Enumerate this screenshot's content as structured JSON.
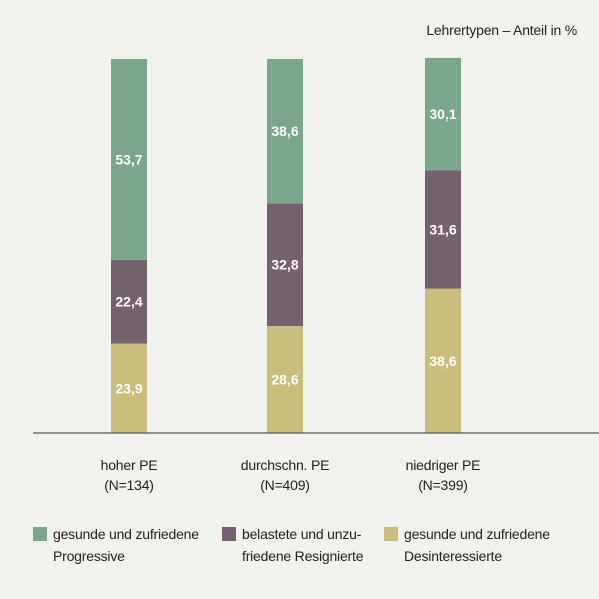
{
  "unit_label": "Lehrertypen – Anteil in %",
  "categories": [
    {
      "line1": "hoher PE",
      "line2": "(N=134)"
    },
    {
      "line1": "durchschn. PE",
      "line2": "(N=409)"
    },
    {
      "line1": "niedriger PE",
      "line2": "(N=399)"
    }
  ],
  "legend": [
    {
      "line1": "gesunde und zufriedene",
      "line2": "Progressive",
      "color": "#7aa68b"
    },
    {
      "line1": "belastete und unzu-",
      "line2": "friedene Resignierte",
      "color": "#74626f"
    },
    {
      "line1": "gesunde und zufriedene",
      "line2": "Desinteressierte",
      "color": "#c9be7c"
    }
  ],
  "chart_data": {
    "type": "bar",
    "stacked": true,
    "orientation": "vertical",
    "categories": [
      "hoher PE (N=134)",
      "durchschn. PE (N=409)",
      "niedriger PE (N=399)"
    ],
    "series": [
      {
        "name": "gesunde und zufriedene Desinteressierte",
        "values": [
          23.9,
          28.6,
          38.6
        ],
        "color": "#c9be7c",
        "labels": [
          "23,9",
          "28,6",
          "38,6"
        ]
      },
      {
        "name": "belastete und unzufriedene Resignierte",
        "values": [
          22.4,
          32.8,
          31.6
        ],
        "color": "#74626f",
        "labels": [
          "22,4",
          "32,8",
          "31,6"
        ]
      },
      {
        "name": "gesunde und zufriedene Progressive",
        "values": [
          53.7,
          38.6,
          30.1
        ],
        "color": "#7aa68b",
        "labels": [
          "53,7",
          "38,6",
          "30,1"
        ]
      }
    ],
    "title": "",
    "ylabel": "Lehrertypen – Anteil in %",
    "ylim": [
      0,
      100
    ],
    "grid": false,
    "legend_position": "bottom"
  }
}
